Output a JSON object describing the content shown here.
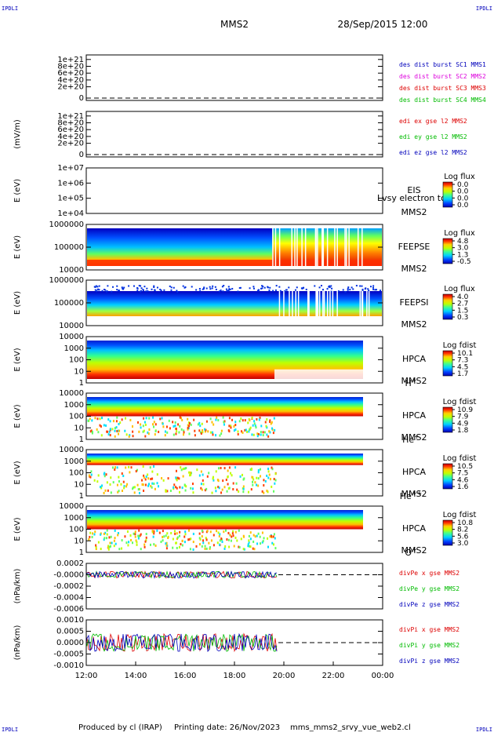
{
  "header": {
    "corner_left_top": "IPDLI",
    "corner_right_top": "IPDLI",
    "spacecraft": "MMS2",
    "datetime": "28/Sep/2015 12:00",
    "corner_left_bottom": "IPDLI",
    "corner_right_bottom": "IPDLI"
  },
  "footer": {
    "produced": "Produced by cl (IRAP)",
    "printing": "Printing date: 26/Nov/2023",
    "script": "mms_mms2_srvy_vue_web2.cl"
  },
  "colors": {
    "sc1": "#0000bb",
    "sc2": "#dd00dd",
    "sc3": "#dd0000",
    "sc4": "#00bb00",
    "x": "#dd0000",
    "y": "#00bb00",
    "z": "#0000bb"
  },
  "chart_data": [
    {
      "type": "line",
      "id": "des-dist",
      "ylabel": "",
      "yticks": [
        "1e+21",
        "8e+20",
        "6e+20",
        "4e+20",
        "2e+20",
        "0"
      ],
      "legend": [
        {
          "name": "des dist burst SC1 MMS1",
          "color": "sc1"
        },
        {
          "name": "des dist burst SC2 MMS2",
          "color": "sc2"
        },
        {
          "name": "des dist burst SC3 MMS3",
          "color": "sc3"
        },
        {
          "name": "des dist burst SC4 MMS4",
          "color": "sc4"
        }
      ]
    },
    {
      "type": "line",
      "id": "edi-e",
      "ylabel": "(mV/m)",
      "yticks": [
        "1e+21",
        "8e+20",
        "6e+20",
        "4e+20",
        "2e+20",
        "0"
      ],
      "legend": [
        {
          "name": "edi ex gse l2 MMS2",
          "color": "x"
        },
        {
          "name": "edi ey gse l2 MMS2",
          "color": "y"
        },
        {
          "name": "edi ez gse l2 MMS2",
          "color": "z"
        }
      ]
    },
    {
      "type": "heatmap",
      "id": "eis",
      "ylabel": "E (eV)",
      "yticks": [
        "1e+07",
        "1e+06",
        "1e+05",
        "1e+04"
      ],
      "instrument": "EIS",
      "sc": "MMS2",
      "overlay": "Lvsy electron to",
      "colorbar_label": "Log flux",
      "colorbar_ticks": [
        "0.0",
        "0.0",
        "0.0",
        "0.0"
      ]
    },
    {
      "type": "heatmap",
      "id": "feeps-e",
      "ylabel": "E (eV)",
      "yticks": [
        "1000000",
        "100000",
        "10000"
      ],
      "instrument": "FEEPSE",
      "sc": "MMS2",
      "colorbar_label": "Log flux",
      "colorbar_ticks": [
        "4.8",
        "3.0",
        "1.3",
        "-0.5"
      ]
    },
    {
      "type": "heatmap",
      "id": "feeps-i",
      "ylabel": "E (eV)",
      "yticks": [
        "1000000",
        "100000",
        "10000"
      ],
      "instrument": "FEEPSI",
      "sc": "MMS2",
      "colorbar_label": "Log flux",
      "colorbar_ticks": [
        "4.0",
        "2.7",
        "1.5",
        "0.3"
      ]
    },
    {
      "type": "heatmap",
      "id": "hpca-h",
      "ylabel": "E (eV)",
      "yticks": [
        "10000",
        "1000",
        "100",
        "10",
        "1"
      ],
      "instrument": "HPCA",
      "sc": "MMS2",
      "species": "H",
      "species_sup": "+",
      "colorbar_label": "Log fdist",
      "colorbar_ticks": [
        "10.1",
        "7.3",
        "4.5",
        "1.7"
      ]
    },
    {
      "type": "heatmap",
      "id": "hpca-he",
      "ylabel": "E (eV)",
      "yticks": [
        "10000",
        "1000",
        "100",
        "10",
        "1"
      ],
      "instrument": "HPCA",
      "sc": "MMS2",
      "species": "He",
      "species_sup": "+",
      "colorbar_label": "Log fdist",
      "colorbar_ticks": [
        "10.9",
        "7.9",
        "4.9",
        "1.8"
      ]
    },
    {
      "type": "heatmap",
      "id": "hpca-he2",
      "ylabel": "E (eV)",
      "yticks": [
        "10000",
        "1000",
        "100",
        "10",
        "1"
      ],
      "instrument": "HPCA",
      "sc": "MMS2",
      "species": "He",
      "species_sup": "++",
      "colorbar_label": "Log fdist",
      "colorbar_ticks": [
        "10.5",
        "7.5",
        "4.6",
        "1.6"
      ]
    },
    {
      "type": "heatmap",
      "id": "hpca-o",
      "ylabel": "E (eV)",
      "yticks": [
        "10000",
        "1000",
        "100",
        "10",
        "1"
      ],
      "instrument": "HPCA",
      "sc": "MMS2",
      "species": "O",
      "species_sup": "+",
      "colorbar_label": "Log fdist",
      "colorbar_ticks": [
        "10.8",
        "8.2",
        "5.6",
        "3.0"
      ]
    },
    {
      "type": "line",
      "id": "divpe",
      "ylabel": "(nPa/km)",
      "yticks": [
        "0.0002",
        "-0.0000",
        "-0.0002",
        "-0.0004",
        "-0.0006"
      ],
      "legend": [
        {
          "name": "divPe x gse MMS2",
          "color": "x"
        },
        {
          "name": "divPe y gse MMS2",
          "color": "y"
        },
        {
          "name": "divPe z gse MMS2",
          "color": "z"
        }
      ]
    },
    {
      "type": "line",
      "id": "divpi",
      "ylabel": "(nPa/km)",
      "yticks": [
        "0.0010",
        "0.0005",
        "0.0000",
        "-0.0005",
        "-0.0010"
      ],
      "legend": [
        {
          "name": "divPi x gse MMS2",
          "color": "x"
        },
        {
          "name": "divPi y gse MMS2",
          "color": "y"
        },
        {
          "name": "divPi z gse MMS2",
          "color": "z"
        }
      ]
    }
  ],
  "xaxis": {
    "ticks": [
      "12:00",
      "14:00",
      "16:00",
      "18:00",
      "20:00",
      "22:00",
      "00:00"
    ]
  }
}
